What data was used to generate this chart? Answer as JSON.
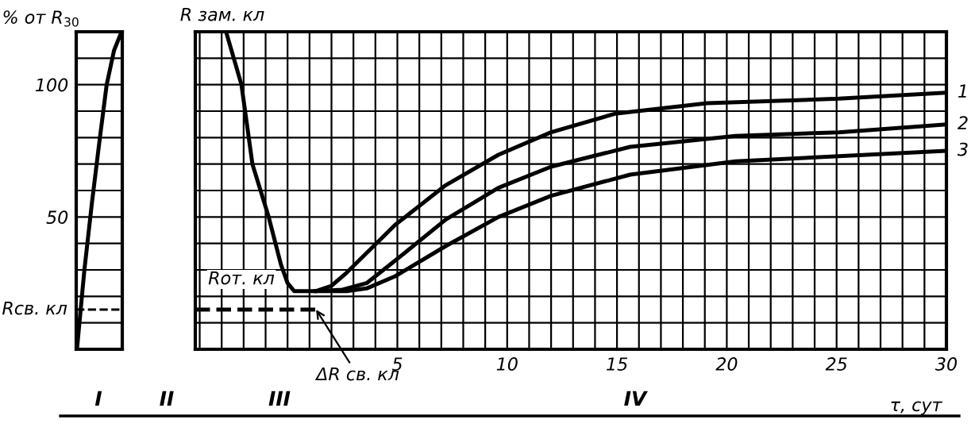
{
  "chart_data": [
    {
      "type": "line",
      "ylabel": "% от R$_{30}$",
      "categories": [
        null,
        null,
        null,
        null,
        null,
        null,
        null
      ],
      "series": [
        {
          "color": "#000000",
          "values": [
            0,
            30,
            55,
            78,
            100,
            113,
            120
          ]
        }
      ],
      "ylim": [
        0,
        120
      ],
      "yticks": [
        {
          "value": 0,
          "label": null
        },
        {
          "value": 10,
          "label": null
        },
        {
          "value": 20,
          "label": null
        },
        {
          "value": 30,
          "label": null
        },
        {
          "value": 40,
          "label": null
        },
        50,
        {
          "value": 60,
          "label": null
        },
        {
          "value": 70,
          "label": null
        },
        {
          "value": 80,
          "label": null
        },
        {
          "value": 90,
          "label": null
        },
        100,
        {
          "value": 110,
          "label": null
        },
        {
          "value": 120,
          "label": null
        }
      ],
      "ref_lines": [
        {
          "axis": "y",
          "value": 15,
          "label": "Rсв. кл",
          "line_style": "dashed",
          "color": "#000000"
        }
      ],
      "grid": "y",
      "tick_labels": "y",
      "annotations": [
        "I"
      ]
    },
    {
      "type": "line",
      "xlabel": "τ, сут",
      "series": [
        {
          "name": "1",
          "color": "#000000",
          "x": [
            -2.8,
            -2.1,
            -1.6,
            -0.86,
            -0.3,
            0,
            0.3,
            1.3,
            2.0,
            2.7,
            4.9,
            7.2,
            9.6,
            12,
            14.9,
            19.1,
            25.1,
            30
          ],
          "values": [
            120,
            100,
            70,
            50,
            32,
            25,
            22,
            22,
            24,
            29,
            47,
            62,
            73.5,
            82,
            89,
            93,
            94.7,
            97
          ]
        },
        {
          "name": "2",
          "color": "#000000",
          "x": [
            1.3,
            2.5,
            3.6,
            4.9,
            7.2,
            9.6,
            12,
            15.6,
            20.4,
            25.1,
            30
          ],
          "values": [
            22,
            22.5,
            25,
            33.5,
            49,
            61,
            69,
            76.5,
            80.6,
            82,
            85
          ]
        },
        {
          "name": "3",
          "color": "#000000",
          "x": [
            1.3,
            2.7,
            3.6,
            4.9,
            7.2,
            9.6,
            12,
            15.6,
            20.4,
            25.1,
            30
          ],
          "values": [
            22,
            22,
            23,
            27.6,
            39,
            50,
            58,
            66,
            71,
            73,
            75
          ]
        },
        {
          "color": "#000000",
          "line_style": "dashed",
          "x": [
            -4.2,
            1.3
          ],
          "values": [
            15,
            15
          ]
        }
      ],
      "xlim": [
        -4.2,
        30
      ],
      "ylim": [
        0,
        120
      ],
      "xticks": [
        {
          "value": -4,
          "label": null
        },
        {
          "value": -3,
          "label": null
        },
        {
          "value": -2,
          "label": null
        },
        {
          "value": -1,
          "label": null
        },
        {
          "value": 0,
          "label": null
        },
        {
          "value": 1,
          "label": null
        },
        {
          "value": 2,
          "label": null
        },
        {
          "value": 3,
          "label": null
        },
        {
          "value": 4,
          "label": null
        },
        5,
        {
          "value": 6,
          "label": null
        },
        {
          "value": 7,
          "label": null
        },
        {
          "value": 8,
          "label": null
        },
        {
          "value": 9,
          "label": null
        },
        10,
        {
          "value": 11,
          "label": null
        },
        {
          "value": 12,
          "label": null
        },
        {
          "value": 13,
          "label": null
        },
        {
          "value": 14,
          "label": null
        },
        15,
        {
          "value": 16,
          "label": null
        },
        {
          "value": 17,
          "label": null
        },
        {
          "value": 18,
          "label": null
        },
        {
          "value": 19,
          "label": null
        },
        20,
        {
          "value": 21,
          "label": null
        },
        {
          "value": 22,
          "label": null
        },
        {
          "value": 23,
          "label": null
        },
        {
          "value": 24,
          "label": null
        },
        25,
        {
          "value": 26,
          "label": null
        },
        {
          "value": 27,
          "label": null
        },
        {
          "value": 28,
          "label": null
        },
        {
          "value": 29,
          "label": null
        },
        30
      ],
      "yticks": [
        {
          "value": 0,
          "label": null
        },
        {
          "value": 10,
          "label": null
        },
        {
          "value": 20,
          "label": null
        },
        {
          "value": 30,
          "label": null
        },
        {
          "value": 40,
          "label": null
        },
        {
          "value": 50,
          "label": null
        },
        {
          "value": 60,
          "label": null
        },
        {
          "value": 70,
          "label": null
        },
        {
          "value": 80,
          "label": null
        },
        {
          "value": 90,
          "label": null
        },
        {
          "value": 100,
          "label": null
        },
        {
          "value": 110,
          "label": null
        },
        {
          "value": 120,
          "label": null
        }
      ],
      "grid": true,
      "tick_labels": "x",
      "annotations": [
        "R зам. кл",
        "Rот. кл",
        {
          "text": "ΔR св. кл",
          "x": 1.3,
          "y": 15
        },
        "II",
        "III",
        "IV"
      ]
    }
  ]
}
